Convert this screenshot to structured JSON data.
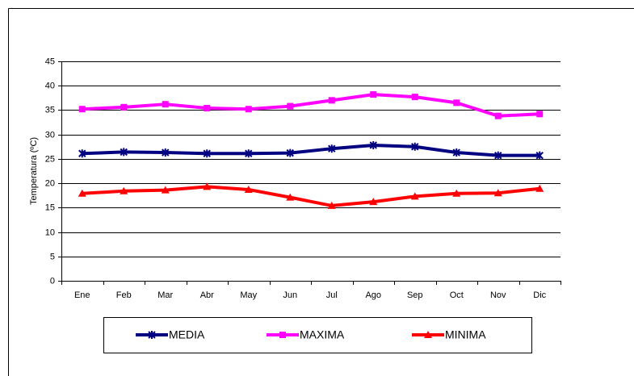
{
  "chart_data": {
    "type": "line",
    "y_label": "Temperatura (ºC)",
    "categories": [
      "Ene",
      "Feb",
      "Mar",
      "Abr",
      "May",
      "Jun",
      "Jul",
      "Ago",
      "Sep",
      "Oct",
      "Nov",
      "Dic"
    ],
    "series": [
      {
        "name": "MEDIA",
        "color": "#000080",
        "marker": "asterisk",
        "values": [
          26.1,
          26.4,
          26.3,
          26.1,
          26.1,
          26.2,
          27.1,
          27.8,
          27.5,
          26.3,
          25.7,
          25.7
        ]
      },
      {
        "name": "MAXIMA",
        "color": "#ff00ff",
        "marker": "square",
        "values": [
          35.2,
          35.6,
          36.2,
          35.4,
          35.2,
          35.8,
          37.0,
          38.2,
          37.7,
          36.5,
          33.8,
          34.2
        ]
      },
      {
        "name": "MINIMA",
        "color": "#ff0000",
        "marker": "triangle",
        "values": [
          17.9,
          18.4,
          18.6,
          19.3,
          18.7,
          17.1,
          15.4,
          16.2,
          17.3,
          17.9,
          18.0,
          18.9
        ]
      }
    ],
    "ylim": [
      0,
      45
    ],
    "yticks": [
      0,
      5,
      10,
      15,
      20,
      25,
      30,
      35,
      40,
      45
    ],
    "grid": true
  }
}
